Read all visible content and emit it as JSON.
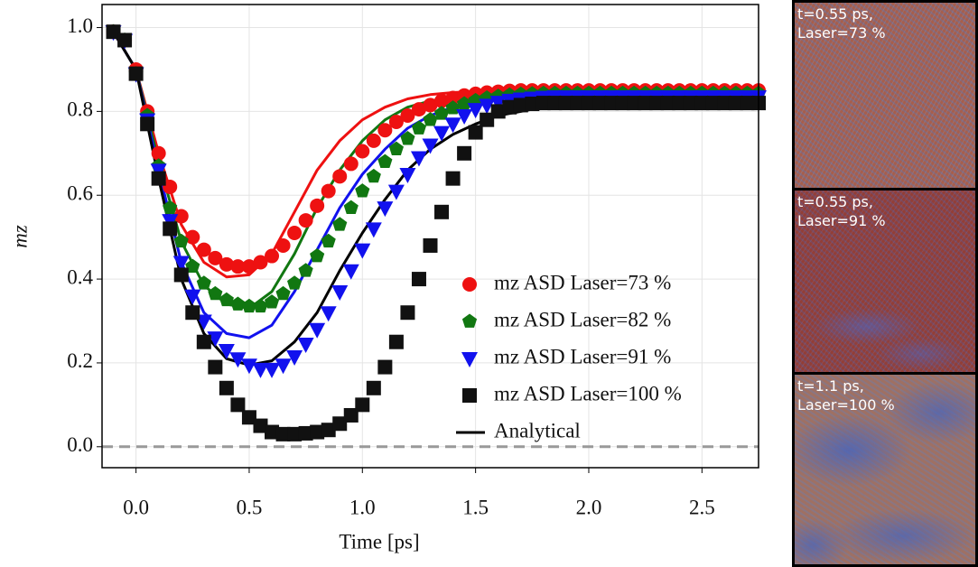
{
  "chart_data": {
    "type": "scatter",
    "ylabel": "mz",
    "xlabel": "Time [ps]",
    "xlim": [
      -0.15,
      2.75
    ],
    "ylim": [
      -0.05,
      1.055
    ],
    "xticks": [
      {
        "value": 0,
        "label": "0.0"
      },
      0.5,
      {
        "value": 1,
        "label": "1.0"
      },
      1.5,
      {
        "value": 2,
        "label": "2.0"
      },
      2.5
    ],
    "yticks": [
      {
        "value": 0,
        "label": "0.0"
      },
      0.2,
      0.4,
      0.6,
      0.8,
      {
        "value": 1,
        "label": "1.0"
      }
    ],
    "grid": true,
    "legend": "lower right",
    "hline": {
      "value": 0,
      "color": "#999999"
    },
    "x": [
      -0.1,
      -0.05,
      0,
      0.05,
      0.1,
      0.15,
      0.2,
      0.25,
      0.3,
      0.35,
      0.4,
      0.45,
      0.5,
      0.55,
      0.6,
      0.65,
      0.7,
      0.75,
      0.8,
      0.85,
      0.9,
      0.95,
      1,
      1.05,
      1.1,
      1.15,
      1.2,
      1.25,
      1.3,
      1.35,
      1.4,
      1.45,
      1.5,
      1.55,
      1.6,
      1.65,
      1.7,
      1.75,
      1.8,
      1.85,
      1.9,
      1.95,
      2,
      2.05,
      2.1,
      2.15,
      2.2,
      2.25,
      2.3,
      2.35,
      2.4,
      2.45,
      2.5,
      2.55,
      2.6,
      2.65,
      2.7,
      2.75
    ],
    "series": [
      {
        "name": "mz ASD Laser=73 %",
        "color": "#ee1111",
        "marker": "circle",
        "values": [
          0.99,
          0.97,
          0.9,
          0.8,
          0.7,
          0.62,
          0.55,
          0.5,
          0.47,
          0.45,
          0.435,
          0.43,
          0.43,
          0.44,
          0.455,
          0.48,
          0.51,
          0.54,
          0.575,
          0.61,
          0.645,
          0.675,
          0.705,
          0.73,
          0.755,
          0.775,
          0.79,
          0.805,
          0.815,
          0.825,
          0.832,
          0.838,
          0.842,
          0.845,
          0.847,
          0.849,
          0.85,
          0.85,
          0.85,
          0.85,
          0.85,
          0.85,
          0.85,
          0.85,
          0.85,
          0.85,
          0.85,
          0.85,
          0.85,
          0.85,
          0.85,
          0.85,
          0.85,
          0.85,
          0.85,
          0.85,
          0.85,
          0.85
        ]
      },
      {
        "name": "mz ASD Laser=82 %",
        "color": "#117711",
        "marker": "pentagon",
        "values": [
          0.99,
          0.97,
          0.89,
          0.79,
          0.67,
          0.57,
          0.49,
          0.43,
          0.39,
          0.365,
          0.35,
          0.34,
          0.335,
          0.335,
          0.345,
          0.365,
          0.39,
          0.42,
          0.455,
          0.49,
          0.53,
          0.57,
          0.61,
          0.645,
          0.68,
          0.71,
          0.735,
          0.76,
          0.78,
          0.795,
          0.808,
          0.818,
          0.826,
          0.832,
          0.836,
          0.839,
          0.841,
          0.842,
          0.843,
          0.843,
          0.843,
          0.843,
          0.843,
          0.843,
          0.843,
          0.843,
          0.843,
          0.843,
          0.843,
          0.843,
          0.843,
          0.843,
          0.843,
          0.843,
          0.843,
          0.843,
          0.843,
          0.843
        ]
      },
      {
        "name": "mz ASD Laser=91 %",
        "color": "#1111ee",
        "marker": "triangle-down",
        "values": [
          0.99,
          0.97,
          0.89,
          0.78,
          0.66,
          0.54,
          0.44,
          0.36,
          0.3,
          0.26,
          0.23,
          0.21,
          0.195,
          0.185,
          0.185,
          0.195,
          0.215,
          0.245,
          0.28,
          0.32,
          0.37,
          0.42,
          0.47,
          0.52,
          0.57,
          0.61,
          0.65,
          0.69,
          0.72,
          0.75,
          0.77,
          0.79,
          0.805,
          0.815,
          0.822,
          0.827,
          0.83,
          0.832,
          0.834,
          0.835,
          0.835,
          0.835,
          0.835,
          0.835,
          0.835,
          0.835,
          0.835,
          0.835,
          0.835,
          0.835,
          0.835,
          0.835,
          0.835,
          0.835,
          0.835,
          0.835,
          0.835,
          0.835
        ]
      },
      {
        "name": "mz ASD Laser=100 %",
        "color": "#111111",
        "marker": "square",
        "values": [
          0.99,
          0.97,
          0.89,
          0.77,
          0.64,
          0.52,
          0.41,
          0.32,
          0.25,
          0.19,
          0.14,
          0.1,
          0.07,
          0.05,
          0.035,
          0.03,
          0.03,
          0.032,
          0.035,
          0.04,
          0.055,
          0.075,
          0.1,
          0.14,
          0.19,
          0.25,
          0.32,
          0.4,
          0.48,
          0.56,
          0.64,
          0.7,
          0.75,
          0.78,
          0.8,
          0.81,
          0.815,
          0.818,
          0.82,
          0.82,
          0.82,
          0.82,
          0.82,
          0.82,
          0.82,
          0.82,
          0.82,
          0.82,
          0.82,
          0.82,
          0.82,
          0.82,
          0.82,
          0.82,
          0.82,
          0.82,
          0.82,
          0.82
        ]
      }
    ],
    "analytical": {
      "name": "Analytical",
      "color": "#000000",
      "x": [
        -0.1,
        0,
        0.1,
        0.2,
        0.3,
        0.4,
        0.5,
        0.6,
        0.7,
        0.8,
        0.9,
        1,
        1.1,
        1.2,
        1.3,
        1.4,
        1.5,
        1.6,
        1.7,
        1.8,
        1.9,
        2,
        2.1,
        2.2,
        2.3,
        2.4,
        2.5,
        2.6,
        2.7
      ],
      "lines": [
        {
          "color": "#ee1111",
          "values": [
            0.99,
            0.9,
            0.7,
            0.53,
            0.44,
            0.405,
            0.41,
            0.46,
            0.56,
            0.66,
            0.73,
            0.78,
            0.81,
            0.83,
            0.84,
            0.845,
            0.848,
            0.85,
            0.85,
            0.85,
            0.85,
            0.85,
            0.85,
            0.85,
            0.85,
            0.85,
            0.85,
            0.85,
            0.85
          ]
        },
        {
          "color": "#117711",
          "values": [
            0.99,
            0.9,
            0.68,
            0.49,
            0.385,
            0.34,
            0.33,
            0.37,
            0.46,
            0.57,
            0.66,
            0.73,
            0.78,
            0.81,
            0.825,
            0.835,
            0.84,
            0.842,
            0.843,
            0.843,
            0.843,
            0.843,
            0.843,
            0.843,
            0.843,
            0.843,
            0.843,
            0.843,
            0.843
          ]
        },
        {
          "color": "#1111ee",
          "values": [
            0.99,
            0.9,
            0.66,
            0.44,
            0.32,
            0.27,
            0.26,
            0.29,
            0.37,
            0.47,
            0.57,
            0.65,
            0.71,
            0.76,
            0.79,
            0.81,
            0.825,
            0.83,
            0.833,
            0.835,
            0.835,
            0.835,
            0.835,
            0.835,
            0.835,
            0.835,
            0.835,
            0.835,
            0.835
          ]
        },
        {
          "color": "#000000",
          "values": [
            0.99,
            0.9,
            0.64,
            0.4,
            0.27,
            0.21,
            0.195,
            0.205,
            0.25,
            0.32,
            0.42,
            0.51,
            0.59,
            0.66,
            0.71,
            0.745,
            0.77,
            0.79,
            0.8,
            0.81,
            0.815,
            0.818,
            0.82,
            0.82,
            0.82,
            0.82,
            0.82,
            0.82,
            0.82
          ]
        }
      ]
    }
  },
  "panels": [
    {
      "lines": [
        "t=0.55 ps,",
        "Laser=73 %"
      ]
    },
    {
      "lines": [
        "t=0.55 ps,",
        "Laser=91 %"
      ]
    },
    {
      "lines": [
        "t=1.1 ps,",
        "Laser=100 %"
      ]
    }
  ]
}
